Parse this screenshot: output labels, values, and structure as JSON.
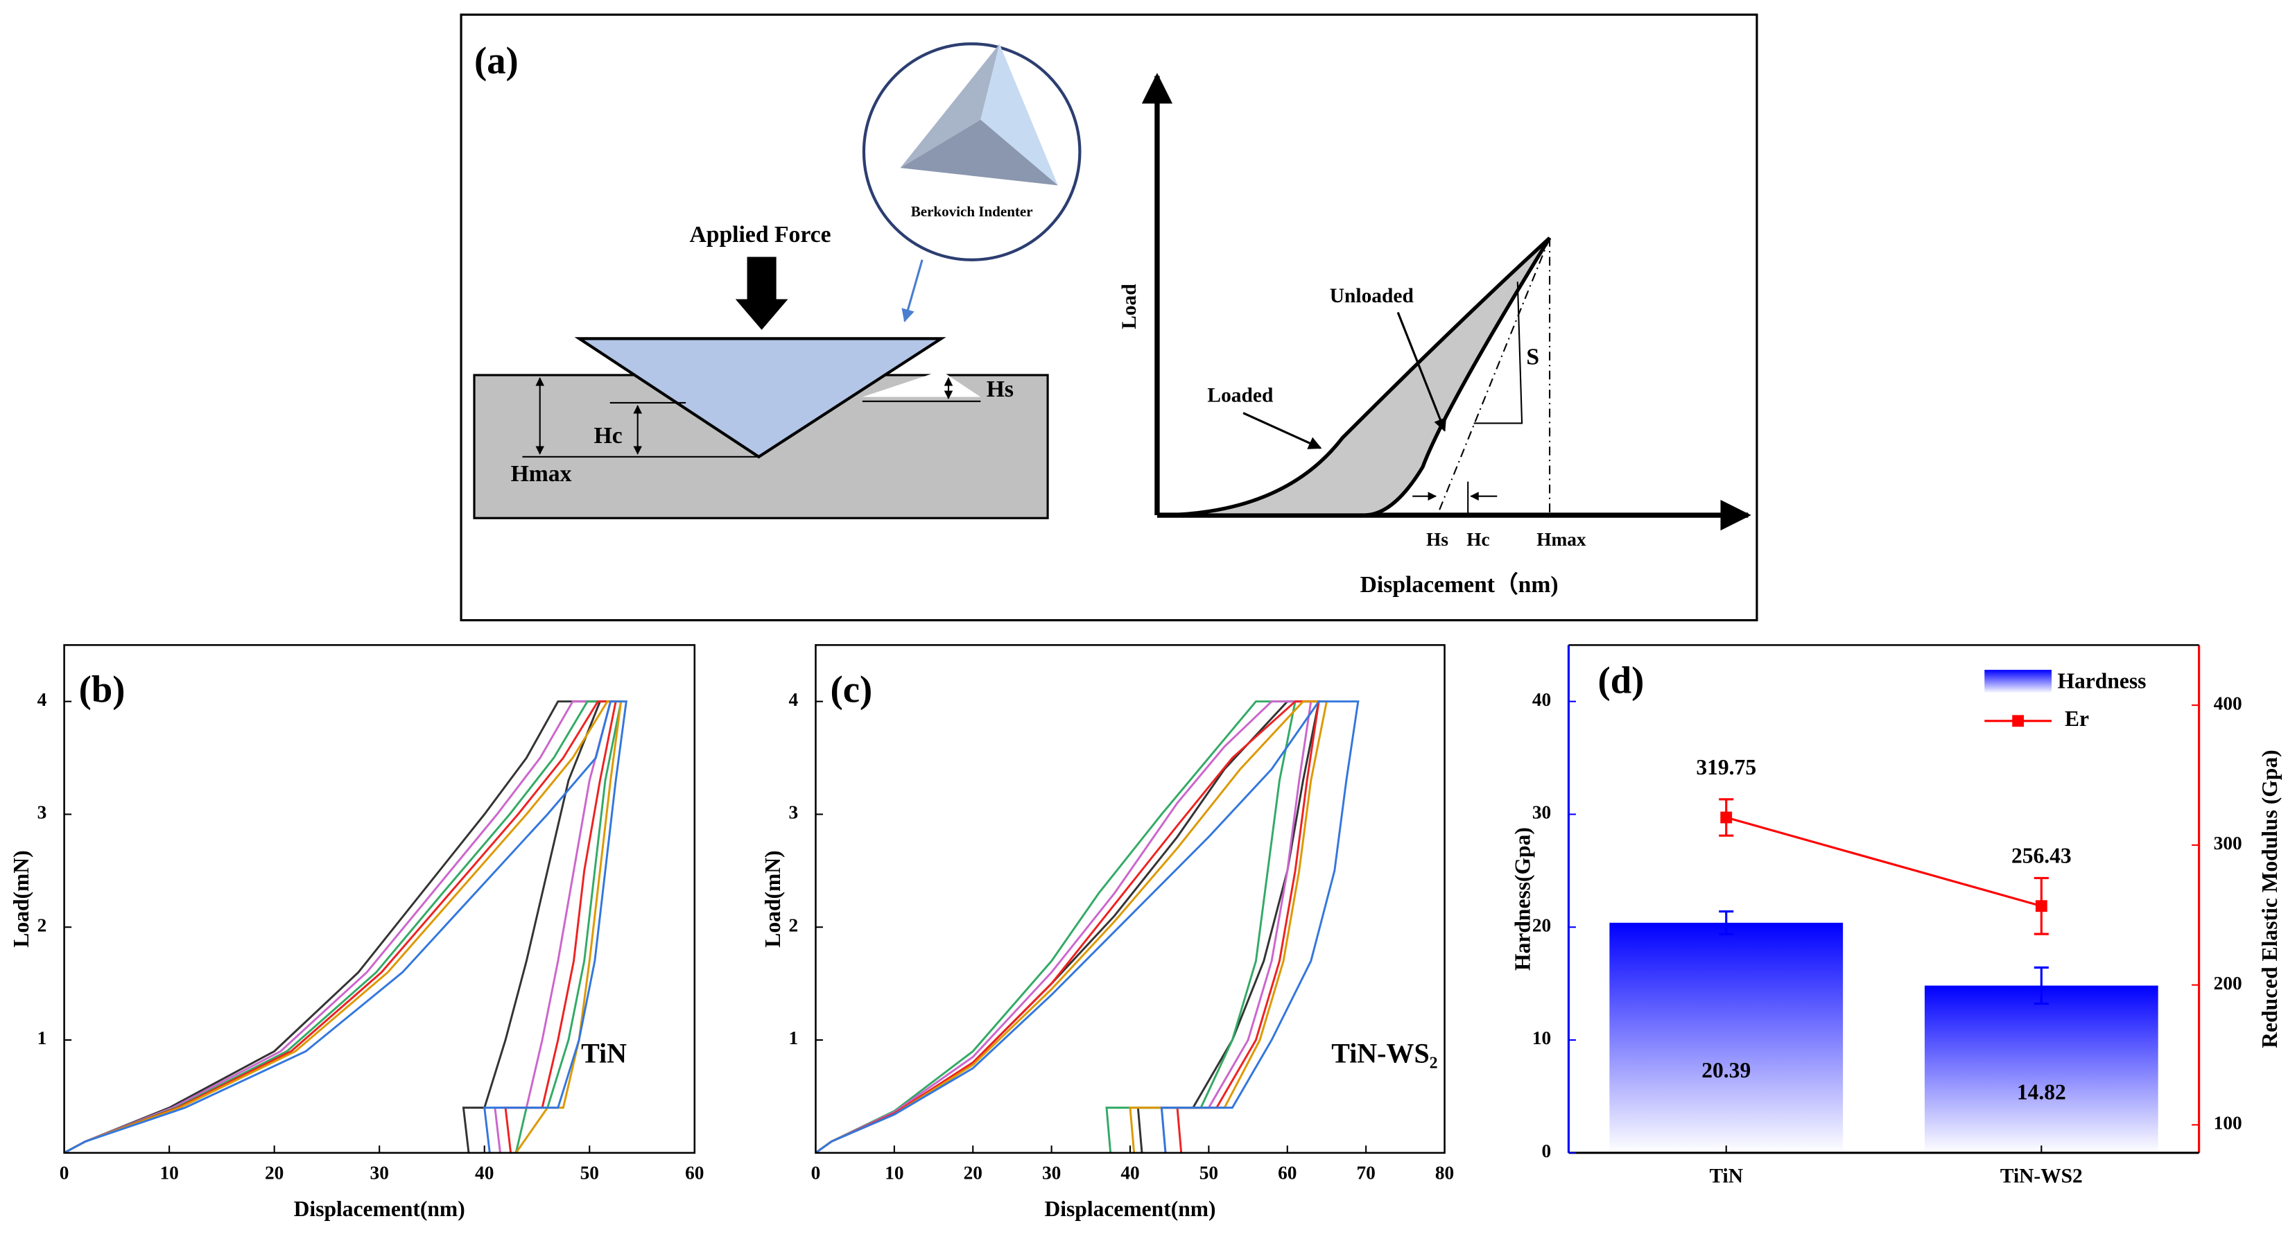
{
  "diagram": {
    "label": "(a)",
    "indenter": "Berkovich Indenter",
    "force": "Applied Force",
    "hs": "Hs",
    "hc": "Hc",
    "hmax": "Hmax",
    "load": "Load",
    "unloaded": "Unloaded",
    "loaded": "Loaded",
    "s": "S",
    "graph_hs": "Hs",
    "graph_hc": "Hc",
    "graph_hmax": "Hmax",
    "displacement": "Displacement（nm)"
  },
  "chart_data": [
    {
      "type": "line",
      "title": "(b)",
      "annotation": "TiN",
      "xlabel": "Displacement(nm)",
      "ylabel": "Load(mN)",
      "xlim": [
        0,
        60
      ],
      "xticks": [
        0,
        10,
        20,
        30,
        40,
        50,
        60
      ],
      "ylim": [
        0,
        4.5
      ],
      "yticks": [
        1,
        2,
        3,
        4
      ],
      "series": [
        {
          "color": "#333333",
          "x": [
            0,
            2,
            10,
            20,
            28,
            34,
            40,
            44,
            47,
            51,
            48,
            46,
            44,
            42,
            40,
            38,
            38.5
          ],
          "values": [
            0,
            0.1,
            0.4,
            0.9,
            1.6,
            2.3,
            3.0,
            3.5,
            4.0,
            4.0,
            3.3,
            2.5,
            1.7,
            1.0,
            0.4,
            0.4,
            0
          ]
        },
        {
          "color": "#cc66cc",
          "x": [
            0,
            2,
            10.3,
            20.6,
            28.8,
            35,
            41.2,
            45.3,
            48.4,
            52,
            50,
            48.5,
            47,
            45.5,
            44,
            41,
            41.5
          ],
          "values": [
            0,
            0.1,
            0.4,
            0.9,
            1.6,
            2.3,
            3.0,
            3.5,
            4.0,
            4.0,
            3.3,
            2.5,
            1.7,
            1.0,
            0.4,
            0.4,
            0
          ]
        },
        {
          "color": "#33aa66",
          "x": [
            0,
            2,
            10.6,
            21.2,
            29.7,
            36,
            42.4,
            46.6,
            49.8,
            53,
            51.5,
            50.5,
            49.5,
            48,
            46,
            44,
            43
          ],
          "values": [
            0,
            0.1,
            0.4,
            0.9,
            1.6,
            2.3,
            3.0,
            3.5,
            4.0,
            4.0,
            3.3,
            2.5,
            1.7,
            1.0,
            0.4,
            0.4,
            0
          ]
        },
        {
          "color": "#ee2222",
          "x": [
            0,
            2,
            10.8,
            21.6,
            30.2,
            36.7,
            43.2,
            47.5,
            50.8,
            52.5,
            51,
            49.5,
            48.5,
            47,
            45.5,
            42,
            42.5
          ],
          "values": [
            0,
            0.1,
            0.4,
            0.9,
            1.6,
            2.3,
            3.0,
            3.5,
            4.0,
            4.0,
            3.3,
            2.5,
            1.7,
            1.0,
            0.4,
            0.4,
            0
          ]
        },
        {
          "color": "#dd9900",
          "x": [
            0,
            2,
            11,
            22,
            30.8,
            37.4,
            44,
            48.4,
            51.7,
            53,
            52,
            51,
            50,
            49,
            47.5,
            46,
            43
          ],
          "values": [
            0,
            0.1,
            0.4,
            0.9,
            1.6,
            2.3,
            3.0,
            3.5,
            4.0,
            4.0,
            3.3,
            2.5,
            1.7,
            1.0,
            0.4,
            0.4,
            0
          ]
        },
        {
          "color": "#3377dd",
          "x": [
            0,
            2,
            11.5,
            23,
            32.2,
            39.1,
            46,
            50.6,
            52,
            53.5,
            52.5,
            51.5,
            50.5,
            49,
            47,
            40,
            40.5
          ],
          "values": [
            0,
            0.1,
            0.4,
            0.9,
            1.6,
            2.3,
            3.0,
            3.5,
            4.0,
            4.0,
            3.3,
            2.5,
            1.7,
            1.0,
            0.4,
            0.4,
            0
          ]
        }
      ]
    },
    {
      "type": "line",
      "title": "(c)",
      "annotation": "TiN-WS₂",
      "xlabel": "Displacement(nm)",
      "ylabel": "Load(mN)",
      "xlim": [
        0,
        80
      ],
      "xticks": [
        0,
        10,
        20,
        30,
        40,
        50,
        60,
        70,
        80
      ],
      "ylim": [
        0,
        4.5
      ],
      "yticks": [
        1,
        2,
        3,
        4
      ],
      "series": [
        {
          "color": "#333333",
          "x": [
            0,
            2,
            10,
            20,
            30,
            38,
            46,
            52,
            60,
            64,
            62,
            60,
            57,
            53,
            48,
            41,
            41.5
          ],
          "values": [
            0,
            0.1,
            0.35,
            0.8,
            1.5,
            2.1,
            2.8,
            3.4,
            4.0,
            4.0,
            3.3,
            2.5,
            1.7,
            1.0,
            0.4,
            0.4,
            0
          ]
        },
        {
          "color": "#33aa66",
          "x": [
            0,
            2,
            10,
            20,
            30,
            36,
            44,
            50,
            56,
            61,
            59,
            57.5,
            56,
            53,
            49,
            37,
            37.5
          ],
          "values": [
            0,
            0.1,
            0.37,
            0.9,
            1.7,
            2.3,
            3.0,
            3.5,
            4.0,
            4.0,
            3.3,
            2.5,
            1.7,
            1.0,
            0.4,
            0.4,
            0
          ]
        },
        {
          "color": "#cc66cc",
          "x": [
            0,
            2,
            10,
            20,
            30,
            38,
            46,
            52,
            58,
            63,
            61.5,
            60,
            58,
            55,
            50,
            44,
            44.5
          ],
          "values": [
            0,
            0.1,
            0.36,
            0.85,
            1.6,
            2.3,
            3.1,
            3.6,
            4.0,
            4.0,
            3.3,
            2.5,
            1.7,
            1.0,
            0.4,
            0.4,
            0
          ]
        },
        {
          "color": "#ee2222",
          "x": [
            0,
            2,
            10,
            20,
            30,
            38,
            46,
            53,
            61,
            64,
            62.5,
            61,
            59,
            56,
            51,
            46,
            46.5
          ],
          "values": [
            0,
            0.1,
            0.35,
            0.8,
            1.5,
            2.2,
            2.9,
            3.5,
            4.0,
            4.0,
            3.3,
            2.5,
            1.7,
            1.0,
            0.4,
            0.4,
            0
          ]
        },
        {
          "color": "#dd9900",
          "x": [
            0,
            2,
            10,
            20,
            30,
            38,
            46,
            54,
            62,
            65,
            63,
            61.5,
            59.5,
            56.5,
            52,
            40,
            40.5
          ],
          "values": [
            0,
            0.1,
            0.34,
            0.78,
            1.45,
            2.05,
            2.7,
            3.4,
            4.0,
            4.0,
            3.3,
            2.5,
            1.7,
            1.0,
            0.4,
            0.4,
            0
          ]
        },
        {
          "color": "#3377dd",
          "x": [
            0,
            2,
            10,
            20,
            30,
            40,
            50,
            58,
            64,
            69,
            67.5,
            66,
            63,
            58,
            53,
            44,
            44.5
          ],
          "values": [
            0,
            0.1,
            0.34,
            0.75,
            1.4,
            2.1,
            2.8,
            3.4,
            4.0,
            4.0,
            3.3,
            2.5,
            1.7,
            1.0,
            0.4,
            0.4,
            0
          ]
        }
      ]
    },
    {
      "type": "bar",
      "title": "(d)",
      "ylabel": "Hardness(Gpa)",
      "y2label": "Reduced Elastic Modulus  (Gpa)",
      "categories": [
        "TiN",
        "TiN-WS2"
      ],
      "ylim": [
        0,
        45
      ],
      "yticks": [
        0,
        10,
        20,
        30,
        40
      ],
      "y2lim": [
        80,
        443
      ],
      "y2ticks": [
        100,
        200,
        300,
        400
      ],
      "series": [
        {
          "name": "Hardness",
          "color": "#0000ff",
          "values": [
            20.39,
            14.82
          ],
          "errors": [
            1.0,
            1.6
          ]
        },
        {
          "name": "Er",
          "color": "#ff0000",
          "axis": "y2",
          "values": [
            319.75,
            256.43
          ],
          "errors": [
            13,
            20
          ]
        }
      ]
    }
  ]
}
